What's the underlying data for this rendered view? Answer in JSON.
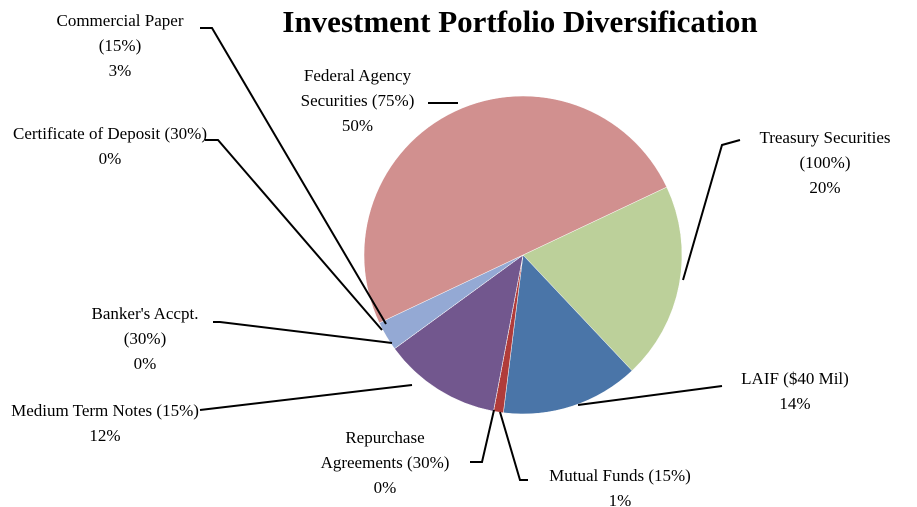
{
  "chart_data": {
    "type": "pie",
    "title": "Investment Portfolio Diversification",
    "categories": [
      "Treasury Securities (100%)",
      "LAIF ($40 Mil)",
      "Mutual Funds  (15%)",
      "Repurchase Agreements (30%)",
      "Medium Term Notes (15%)",
      "Banker's Accpt. (30%)",
      "Certificate of Deposit (30%)",
      "Commercial Paper (15%)",
      "Federal Agency Securities (75%)"
    ],
    "values": [
      20,
      14,
      1,
      0,
      12,
      0,
      0,
      3,
      50
    ],
    "value_labels": [
      "20%",
      "14%",
      "1%",
      "0%",
      "12%",
      "0%",
      "0%",
      "3%",
      "50%"
    ],
    "colors": [
      "#bcd09a",
      "#4a75a8",
      "#b03c3a",
      "#8aa652",
      "#72578e",
      "#4aacc5",
      "#f59645",
      "#94a9d4",
      "#d1908f"
    ]
  }
}
